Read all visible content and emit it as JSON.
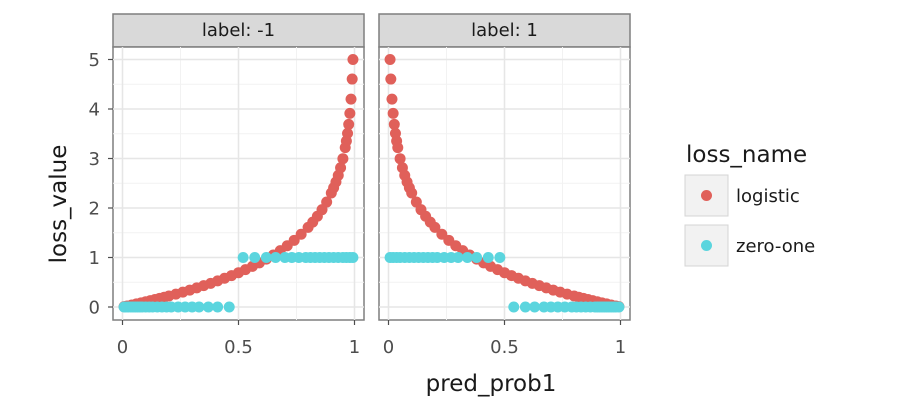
{
  "chart_data": {
    "type": "scatter",
    "facet_var": "label",
    "facets": [
      {
        "label": "label: -1",
        "label_value": -1
      },
      {
        "label": "label: 1",
        "label_value": 1
      }
    ],
    "xlabel": "pred_prob1",
    "ylabel": "loss_value",
    "xlim": [
      0,
      1
    ],
    "ylim": [
      0,
      5
    ],
    "x_ticks": [
      0,
      0.5,
      1
    ],
    "x_tick_labels": [
      "0",
      "0.5",
      "1"
    ],
    "y_ticks": [
      0,
      1,
      2,
      3,
      4,
      5
    ],
    "y_tick_labels": [
      "0",
      "1",
      "2",
      "3",
      "4",
      "5"
    ],
    "grid": true,
    "legend": {
      "title": "loss_name",
      "position": "right",
      "entries": [
        {
          "name": "logistic",
          "color": "#E0605A"
        },
        {
          "name": "zero-one",
          "color": "#5BD5DE"
        }
      ]
    },
    "x": [
      0.0067,
      0.0135,
      0.0203,
      0.0272,
      0.0342,
      0.0413,
      0.0484,
      0.0556,
      0.0629,
      0.0703,
      0.0778,
      0.0854,
      0.0931,
      0.1008,
      0.1087,
      0.1167,
      0.1248,
      0.133,
      0.1413,
      0.1497,
      0.1583,
      0.1669,
      0.1757,
      0.1847,
      0.1937,
      0.2029,
      0.2122,
      0.2217,
      0.2313,
      0.2411,
      0.2509,
      0.261,
      0.2712,
      0.2816,
      0.2921,
      0.3028,
      0.3136,
      0.3247,
      0.3359,
      0.3473,
      0.3589,
      0.3707,
      0.3826,
      0.3948,
      0.4072,
      0.4199,
      0.4327,
      0.4458,
      0.4592,
      0.4727,
      0.4866,
      0.5007,
      0.5151,
      0.5298,
      0.5448,
      0.5601,
      0.5757,
      0.5916,
      0.6079,
      0.6246,
      0.6416,
      0.659,
      0.6768,
      0.6951,
      0.7137,
      0.7329,
      0.7525,
      0.7726,
      0.7932,
      0.8143,
      0.8361,
      0.8584,
      0.8814,
      0.905,
      0.9293,
      0.9544,
      0.9802,
      1.0
    ],
    "series": [
      {
        "name": "logistic",
        "facet": "label: -1",
        "color": "#E0605A",
        "points": [
          [
            0.0067,
            0.007
          ],
          [
            0.02,
            0.02
          ],
          [
            0.04,
            0.041
          ],
          [
            0.06,
            0.062
          ],
          [
            0.08,
            0.083
          ],
          [
            0.1,
            0.105
          ],
          [
            0.12,
            0.128
          ],
          [
            0.14,
            0.151
          ],
          [
            0.16,
            0.174
          ],
          [
            0.18,
            0.198
          ],
          [
            0.2,
            0.223
          ],
          [
            0.23,
            0.261
          ],
          [
            0.26,
            0.301
          ],
          [
            0.29,
            0.342
          ],
          [
            0.32,
            0.386
          ],
          [
            0.35,
            0.431
          ],
          [
            0.38,
            0.478
          ],
          [
            0.41,
            0.528
          ],
          [
            0.44,
            0.58
          ],
          [
            0.47,
            0.635
          ],
          [
            0.5,
            0.693
          ],
          [
            0.53,
            0.755
          ],
          [
            0.56,
            0.821
          ],
          [
            0.59,
            0.892
          ],
          [
            0.62,
            0.968
          ],
          [
            0.65,
            1.05
          ],
          [
            0.68,
            1.139
          ],
          [
            0.71,
            1.238
          ],
          [
            0.74,
            1.347
          ],
          [
            0.77,
            1.47
          ],
          [
            0.8,
            1.609
          ],
          [
            0.82,
            1.715
          ],
          [
            0.84,
            1.833
          ],
          [
            0.86,
            1.966
          ],
          [
            0.88,
            2.12
          ],
          [
            0.9,
            2.303
          ],
          [
            0.91,
            2.408
          ],
          [
            0.92,
            2.526
          ],
          [
            0.93,
            2.659
          ],
          [
            0.94,
            2.813
          ],
          [
            0.95,
            2.996
          ],
          [
            0.96,
            3.219
          ],
          [
            0.965,
            3.352
          ],
          [
            0.97,
            3.507
          ],
          [
            0.975,
            3.689
          ],
          [
            0.98,
            3.912
          ],
          [
            0.985,
            4.2
          ],
          [
            0.99,
            4.605
          ],
          [
            0.9933,
            5.0
          ]
        ]
      },
      {
        "name": "zero-one",
        "facet": "label: -1",
        "color": "#5BD5DE",
        "points": [
          [
            0.0067,
            0
          ],
          [
            0.015,
            0
          ],
          [
            0.025,
            0
          ],
          [
            0.035,
            0
          ],
          [
            0.045,
            0
          ],
          [
            0.055,
            0
          ],
          [
            0.065,
            0
          ],
          [
            0.075,
            0
          ],
          [
            0.085,
            0
          ],
          [
            0.1,
            0
          ],
          [
            0.115,
            0
          ],
          [
            0.13,
            0
          ],
          [
            0.15,
            0
          ],
          [
            0.17,
            0
          ],
          [
            0.19,
            0
          ],
          [
            0.21,
            0
          ],
          [
            0.24,
            0
          ],
          [
            0.27,
            0
          ],
          [
            0.3,
            0
          ],
          [
            0.33,
            0
          ],
          [
            0.37,
            0
          ],
          [
            0.41,
            0
          ],
          [
            0.46,
            0
          ],
          [
            0.52,
            1
          ],
          [
            0.57,
            1
          ],
          [
            0.62,
            1
          ],
          [
            0.66,
            1
          ],
          [
            0.7,
            1
          ],
          [
            0.73,
            1
          ],
          [
            0.76,
            1
          ],
          [
            0.79,
            1
          ],
          [
            0.81,
            1
          ],
          [
            0.83,
            1
          ],
          [
            0.85,
            1
          ],
          [
            0.87,
            1
          ],
          [
            0.89,
            1
          ],
          [
            0.91,
            1
          ],
          [
            0.93,
            1
          ],
          [
            0.95,
            1
          ],
          [
            0.965,
            1
          ],
          [
            0.98,
            1
          ],
          [
            0.9933,
            1
          ]
        ]
      },
      {
        "name": "logistic",
        "facet": "label: 1",
        "color": "#E0605A",
        "points": [
          [
            0.0067,
            5.0
          ],
          [
            0.01,
            4.605
          ],
          [
            0.015,
            4.2
          ],
          [
            0.02,
            3.912
          ],
          [
            0.025,
            3.689
          ],
          [
            0.03,
            3.507
          ],
          [
            0.035,
            3.352
          ],
          [
            0.04,
            3.219
          ],
          [
            0.05,
            2.996
          ],
          [
            0.06,
            2.813
          ],
          [
            0.07,
            2.659
          ],
          [
            0.08,
            2.526
          ],
          [
            0.09,
            2.408
          ],
          [
            0.1,
            2.303
          ],
          [
            0.12,
            2.12
          ],
          [
            0.14,
            1.966
          ],
          [
            0.16,
            1.833
          ],
          [
            0.18,
            1.715
          ],
          [
            0.2,
            1.609
          ],
          [
            0.23,
            1.47
          ],
          [
            0.26,
            1.347
          ],
          [
            0.29,
            1.238
          ],
          [
            0.32,
            1.139
          ],
          [
            0.35,
            1.05
          ],
          [
            0.38,
            0.968
          ],
          [
            0.41,
            0.892
          ],
          [
            0.44,
            0.821
          ],
          [
            0.47,
            0.755
          ],
          [
            0.5,
            0.693
          ],
          [
            0.53,
            0.635
          ],
          [
            0.56,
            0.58
          ],
          [
            0.59,
            0.528
          ],
          [
            0.62,
            0.478
          ],
          [
            0.65,
            0.431
          ],
          [
            0.68,
            0.386
          ],
          [
            0.71,
            0.342
          ],
          [
            0.74,
            0.301
          ],
          [
            0.77,
            0.261
          ],
          [
            0.8,
            0.223
          ],
          [
            0.82,
            0.198
          ],
          [
            0.84,
            0.174
          ],
          [
            0.86,
            0.151
          ],
          [
            0.88,
            0.128
          ],
          [
            0.9,
            0.105
          ],
          [
            0.92,
            0.083
          ],
          [
            0.94,
            0.062
          ],
          [
            0.96,
            0.041
          ],
          [
            0.98,
            0.02
          ],
          [
            0.9933,
            0.007
          ]
        ]
      },
      {
        "name": "zero-one",
        "facet": "label: 1",
        "color": "#5BD5DE",
        "points": [
          [
            0.0067,
            1
          ],
          [
            0.02,
            1
          ],
          [
            0.035,
            1
          ],
          [
            0.05,
            1
          ],
          [
            0.07,
            1
          ],
          [
            0.09,
            1
          ],
          [
            0.11,
            1
          ],
          [
            0.13,
            1
          ],
          [
            0.15,
            1
          ],
          [
            0.17,
            1
          ],
          [
            0.19,
            1
          ],
          [
            0.21,
            1
          ],
          [
            0.24,
            1
          ],
          [
            0.27,
            1
          ],
          [
            0.3,
            1
          ],
          [
            0.34,
            1
          ],
          [
            0.38,
            1
          ],
          [
            0.43,
            1
          ],
          [
            0.48,
            1
          ],
          [
            0.54,
            0
          ],
          [
            0.59,
            0
          ],
          [
            0.63,
            0
          ],
          [
            0.67,
            0
          ],
          [
            0.7,
            0
          ],
          [
            0.73,
            0
          ],
          [
            0.76,
            0
          ],
          [
            0.79,
            0
          ],
          [
            0.81,
            0
          ],
          [
            0.83,
            0
          ],
          [
            0.85,
            0
          ],
          [
            0.87,
            0
          ],
          [
            0.89,
            0
          ],
          [
            0.9,
            0
          ],
          [
            0.91,
            0
          ],
          [
            0.92,
            0
          ],
          [
            0.93,
            0
          ],
          [
            0.94,
            0
          ],
          [
            0.95,
            0
          ],
          [
            0.96,
            0
          ],
          [
            0.97,
            0
          ],
          [
            0.98,
            0
          ],
          [
            0.9933,
            0
          ]
        ]
      }
    ]
  }
}
